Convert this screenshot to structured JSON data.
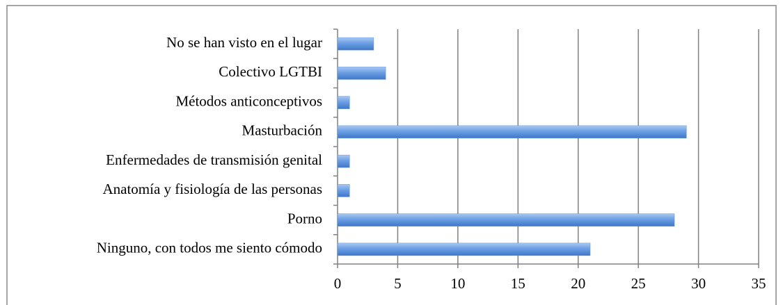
{
  "chart_data": {
    "type": "bar",
    "orientation": "horizontal",
    "categories": [
      "No se han visto en el lugar",
      "Colectivo LGTBI",
      "Métodos anticonceptivos",
      "Masturbación",
      "Enfermedades de transmisión genital",
      "Anatomía y fisiología de las personas",
      "Porno",
      "Ninguno, con todos me siento cómodo"
    ],
    "values": [
      3,
      4,
      1,
      29,
      1,
      1,
      28,
      21
    ],
    "color": "#5f95e0",
    "xlim": [
      0,
      35
    ],
    "xticks": [
      0,
      5,
      10,
      15,
      20,
      25,
      30,
      35
    ],
    "grid": true
  }
}
